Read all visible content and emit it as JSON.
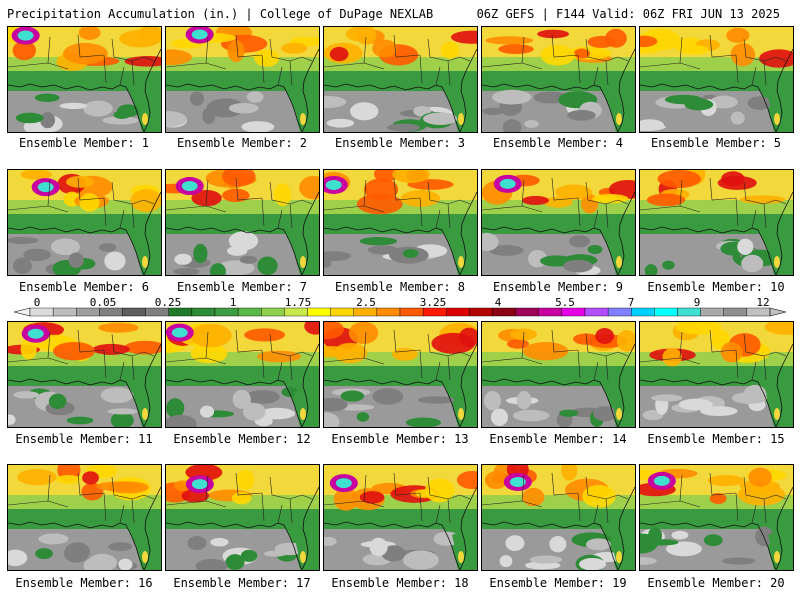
{
  "header": {
    "title_left": "Precipitation Accumulation (in.) | College of DuPage NEXLAB",
    "title_right": "06Z GEFS | F144 Valid: 06Z FRI JUN 13 2025"
  },
  "colorbar": {
    "tick_labels": [
      "0",
      "0.05",
      "0.25",
      "1",
      "1.75",
      "2.5",
      "3.25",
      "4",
      "5.5",
      "7",
      "9",
      "12"
    ],
    "colors": [
      "#dcdcdc",
      "#bdbdbd",
      "#9e9e9e",
      "#808080",
      "#5e5e5e",
      "#7f7f7f",
      "#1f7a2a",
      "#2e8b37",
      "#3e9c42",
      "#57b847",
      "#8fd14a",
      "#c8e84c",
      "#ffff00",
      "#ffd700",
      "#ffb000",
      "#ff8c00",
      "#ff5a00",
      "#ff1a00",
      "#dc0000",
      "#b40000",
      "#8c0014",
      "#a0005a",
      "#c800a0",
      "#e600e6",
      "#b44cff",
      "#7f7fff",
      "#00d2ff",
      "#00ffff",
      "#40e0d0",
      "#a9a9a9",
      "#8f8f8f",
      "#c0c0c0"
    ]
  },
  "panels": [
    {
      "label": "Ensemble Member: 1"
    },
    {
      "label": "Ensemble Member: 2"
    },
    {
      "label": "Ensemble Member: 3"
    },
    {
      "label": "Ensemble Member: 4"
    },
    {
      "label": "Ensemble Member: 5"
    },
    {
      "label": "Ensemble Member: 6"
    },
    {
      "label": "Ensemble Member: 7"
    },
    {
      "label": "Ensemble Member: 8"
    },
    {
      "label": "Ensemble Member: 9"
    },
    {
      "label": "Ensemble Member: 10"
    },
    {
      "label": "Ensemble Member: 11"
    },
    {
      "label": "Ensemble Member: 12"
    },
    {
      "label": "Ensemble Member: 13"
    },
    {
      "label": "Ensemble Member: 14"
    },
    {
      "label": "Ensemble Member: 15"
    },
    {
      "label": "Ensemble Member: 16"
    },
    {
      "label": "Ensemble Member: 17"
    },
    {
      "label": "Ensemble Member: 18"
    },
    {
      "label": "Ensemble Member: 19"
    },
    {
      "label": "Ensemble Member: 20"
    }
  ]
}
